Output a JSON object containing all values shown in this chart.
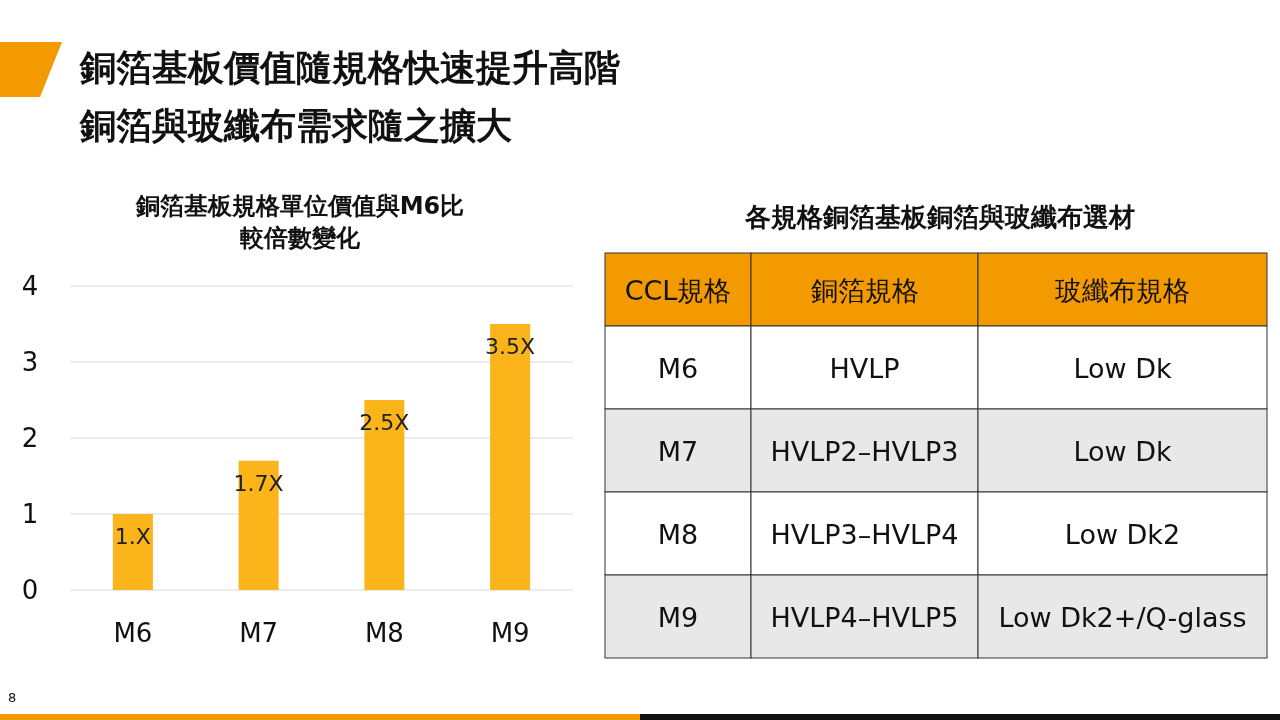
{
  "chart_data": [
    {
      "type": "bar",
      "title": "銅箔基板價值隨規格快速提升高階銅箔與玻纖布需求隨之擴大",
      "subtitle": "銅箔基板規格單位價值與M6比較倍數變化",
      "categories": [
        "M6",
        "M7",
        "M8",
        "M9"
      ],
      "values": [
        1,
        1.7,
        2.5,
        3.5
      ],
      "value_labels": [
        "1.X",
        "1.7X",
        "2.5X",
        "3.5X"
      ],
      "color": "#fbb41a",
      "ylim": [
        0,
        4
      ],
      "yticks": [
        0,
        1,
        2,
        3,
        4
      ],
      "grid": "y",
      "annotations": [
        "8"
      ]
    },
    {
      "type": "other",
      "title": "各規格銅箔基板銅箔與玻纖布選材",
      "categories": [
        "CCL規格",
        "銅箔規格",
        "玻纖布規格"
      ],
      "y_categories": [
        "M6",
        "M7",
        "M8",
        "M9"
      ],
      "cell_labels": [
        [
          "HVLP",
          "Low Dk"
        ],
        [
          "HVLP2–HVLP3",
          "Low Dk"
        ],
        [
          "HVLP3–HVLP4",
          "Low Dk2"
        ],
        [
          "HVLP4–HVLP5",
          "Low Dk2+/Q-glass"
        ]
      ]
    }
  ]
}
